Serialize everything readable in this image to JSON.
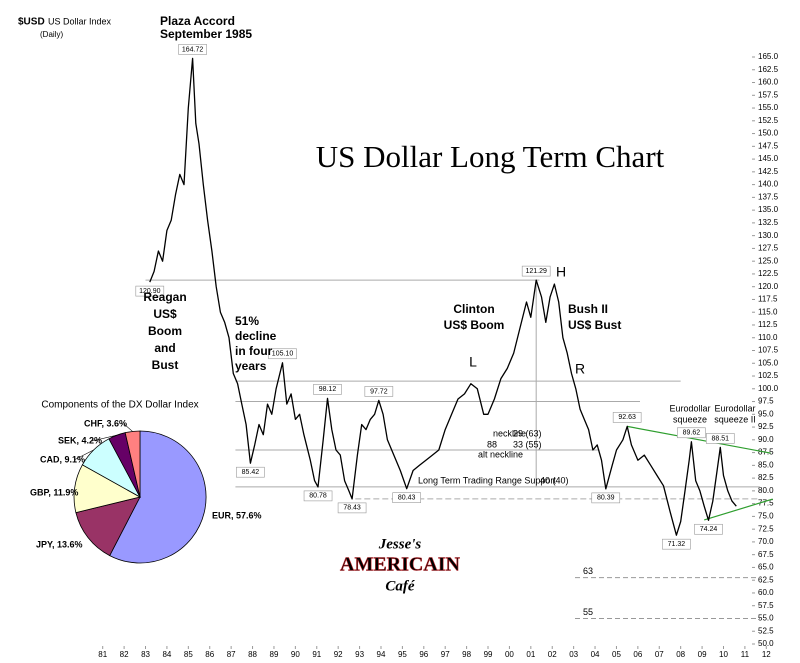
{
  "chart_data": [
    {
      "type": "line",
      "title": "US Dollar Long Term Chart",
      "ticker": "$USD",
      "subtitle": "US Dollar Index",
      "note": "(Daily)",
      "color": "#000000",
      "xlim": [
        1980.5,
        2012.5
      ],
      "ylim": [
        50,
        165
      ],
      "x": [
        1983.2,
        1983.4,
        1983.6,
        1983.8,
        1984.0,
        1984.2,
        1984.4,
        1984.6,
        1984.8,
        1985.0,
        1985.1,
        1985.2,
        1985.35,
        1985.5,
        1985.7,
        1985.9,
        1986.1,
        1986.3,
        1986.5,
        1986.7,
        1986.9,
        1987.1,
        1987.3,
        1987.5,
        1987.7,
        1987.9,
        1988.1,
        1988.3,
        1988.5,
        1988.7,
        1988.9,
        1989.1,
        1989.4,
        1989.6,
        1989.8,
        1990.0,
        1990.2,
        1990.4,
        1990.7,
        1990.9,
        1991.06,
        1991.3,
        1991.5,
        1991.7,
        1991.9,
        1992.1,
        1992.3,
        1992.5,
        1992.65,
        1992.9,
        1993.1,
        1993.3,
        1993.5,
        1993.7,
        1993.9,
        1994.1,
        1994.3,
        1994.5,
        1994.7,
        1994.9,
        1995.2,
        1995.5,
        1995.8,
        1996.1,
        1996.4,
        1996.7,
        1997.0,
        1997.3,
        1997.6,
        1997.9,
        1998.2,
        1998.5,
        1998.8,
        1999.0,
        1999.3,
        1999.6,
        1999.9,
        2000.2,
        2000.5,
        2000.8,
        2001.0,
        2001.25,
        2001.5,
        2001.7,
        2001.9,
        2002.1,
        2002.3,
        2002.5,
        2002.7,
        2002.9,
        2003.1,
        2003.3,
        2003.5,
        2003.7,
        2003.9,
        2004.1,
        2004.3,
        2004.5,
        2004.8,
        2005.0,
        2005.3,
        2005.5,
        2005.7,
        2006.0,
        2006.3,
        2006.6,
        2006.9,
        2007.2,
        2007.5,
        2007.8,
        2008.0,
        2008.2,
        2008.4,
        2008.5,
        2008.7,
        2008.9,
        2009.1,
        2009.3,
        2009.5,
        2009.7,
        2009.85,
        2010.0,
        2010.2,
        2010.4,
        2010.6
      ],
      "values": [
        120.9,
        123,
        127,
        125,
        131,
        133,
        138,
        142,
        140,
        155,
        160,
        164.72,
        152,
        148,
        140,
        133,
        127,
        120,
        115,
        113,
        110,
        103,
        101,
        97,
        93,
        85.42,
        89,
        93,
        91,
        97,
        95,
        100,
        105.1,
        97,
        99,
        94,
        95,
        91,
        86,
        82,
        80.78,
        90,
        98.12,
        92,
        88,
        87,
        82,
        80,
        78.43,
        87,
        93,
        92,
        94,
        95,
        97.72,
        95,
        90,
        88,
        86,
        84,
        80.43,
        84,
        85,
        86,
        87,
        88,
        92,
        95,
        98,
        99,
        101,
        100,
        95,
        95,
        98,
        102,
        104,
        107,
        112,
        117,
        114,
        121.29,
        118,
        113,
        118,
        120.5,
        117,
        110,
        107,
        103,
        100,
        96,
        94,
        92,
        88,
        89,
        86,
        80.39,
        85,
        88,
        90,
        92.63,
        89,
        86,
        87,
        85,
        83,
        81,
        76,
        71.32,
        74,
        80,
        86,
        89.62,
        82,
        80,
        77,
        74.24,
        78,
        84,
        88.51,
        83,
        80,
        78,
        77
      ],
      "value_labels": [
        "120.90",
        null,
        null,
        null,
        null,
        null,
        null,
        null,
        null,
        null,
        null,
        "164.72",
        null,
        null,
        null,
        null,
        null,
        null,
        null,
        null,
        null,
        null,
        null,
        null,
        null,
        "85.42",
        null,
        null,
        null,
        null,
        null,
        null,
        "105.10",
        null,
        null,
        null,
        null,
        null,
        null,
        null,
        "80.78",
        null,
        "98.12",
        null,
        null,
        null,
        null,
        null,
        "78.43",
        null,
        null,
        null,
        null,
        null,
        "97.72",
        null,
        null,
        null,
        null,
        null,
        "80.43",
        null,
        null,
        null,
        null,
        null,
        null,
        null,
        null,
        null,
        null,
        null,
        null,
        null,
        null,
        null,
        null,
        null,
        null,
        null,
        null,
        "121.29",
        null,
        null,
        null,
        null,
        null,
        null,
        null,
        null,
        null,
        null,
        null,
        null,
        null,
        null,
        null,
        "80.39",
        null,
        null,
        null,
        "92.63",
        null,
        null,
        null,
        null,
        null,
        null,
        null,
        "71.32",
        null,
        null,
        null,
        "89.62",
        null,
        null,
        null,
        "74.24",
        null,
        null,
        "88.51",
        null,
        null,
        null,
        null
      ],
      "xticks": [
        {
          "value": 1981,
          "label": "81"
        },
        {
          "value": 1982,
          "label": "82"
        },
        {
          "value": 1983,
          "label": "83"
        },
        {
          "value": 1984,
          "label": "84"
        },
        {
          "value": 1985,
          "label": "85"
        },
        {
          "value": 1986,
          "label": "86"
        },
        {
          "value": 1987,
          "label": "87"
        },
        {
          "value": 1988,
          "label": "88"
        },
        {
          "value": 1989,
          "label": "89"
        },
        {
          "value": 1990,
          "label": "90"
        },
        {
          "value": 1991,
          "label": "91"
        },
        {
          "value": 1992,
          "label": "92"
        },
        {
          "value": 1993,
          "label": "93"
        },
        {
          "value": 1994,
          "label": "94"
        },
        {
          "value": 1995,
          "label": "95"
        },
        {
          "value": 1996,
          "label": "96"
        },
        {
          "value": 1997,
          "label": "97"
        },
        {
          "value": 1998,
          "label": "98"
        },
        {
          "value": 1999,
          "label": "99"
        },
        {
          "value": 2000,
          "label": "00"
        },
        {
          "value": 2001,
          "label": "01"
        },
        {
          "value": 2002,
          "label": "02"
        },
        {
          "value": 2003,
          "label": "03"
        },
        {
          "value": 2004,
          "label": "04"
        },
        {
          "value": 2005,
          "label": "05"
        },
        {
          "value": 2006,
          "label": "06"
        },
        {
          "value": 2007,
          "label": "07"
        },
        {
          "value": 2008,
          "label": "08"
        },
        {
          "value": 2009,
          "label": "09"
        },
        {
          "value": 2010,
          "label": "10"
        },
        {
          "value": 2011,
          "label": "11"
        },
        {
          "value": 2012,
          "label": "12"
        }
      ],
      "yticks": [
        {
          "value": 50,
          "label": "50.0"
        },
        {
          "value": 52.5,
          "label": "52.5"
        },
        {
          "value": 55,
          "label": "55.0"
        },
        {
          "value": 57.5,
          "label": "57.5"
        },
        {
          "value": 60,
          "label": "60.0"
        },
        {
          "value": 62.5,
          "label": "62.5"
        },
        {
          "value": 65,
          "label": "65.0"
        },
        {
          "value": 67.5,
          "label": "67.5"
        },
        {
          "value": 70,
          "label": "70.0"
        },
        {
          "value": 72.5,
          "label": "72.5"
        },
        {
          "value": 75,
          "label": "75.0"
        },
        {
          "value": 77.5,
          "label": "77.5"
        },
        {
          "value": 80,
          "label": "80.0"
        },
        {
          "value": 82.5,
          "label": "82.5"
        },
        {
          "value": 85,
          "label": "85.0"
        },
        {
          "value": 87.5,
          "label": "87.5"
        },
        {
          "value": 90,
          "label": "90.0"
        },
        {
          "value": 92.5,
          "label": "92.5"
        },
        {
          "value": 95,
          "label": "95.0"
        },
        {
          "value": 97.5,
          "label": "97.5"
        },
        {
          "value": 100,
          "label": "100.0"
        },
        {
          "value": 102.5,
          "label": "102.5"
        },
        {
          "value": 105,
          "label": "105.0"
        },
        {
          "value": 107.5,
          "label": "107.5"
        },
        {
          "value": 110,
          "label": "110.0"
        },
        {
          "value": 112.5,
          "label": "112.5"
        },
        {
          "value": 115,
          "label": "115.0"
        },
        {
          "value": 117.5,
          "label": "117.5"
        },
        {
          "value": 120,
          "label": "120.0"
        },
        {
          "value": 122.5,
          "label": "122.5"
        },
        {
          "value": 125,
          "label": "125.0"
        },
        {
          "value": 127.5,
          "label": "127.5"
        },
        {
          "value": 130,
          "label": "130.0"
        },
        {
          "value": 132.5,
          "label": "132.5"
        },
        {
          "value": 135,
          "label": "135.0"
        },
        {
          "value": 137.5,
          "label": "137.5"
        },
        {
          "value": 140,
          "label": "140.0"
        },
        {
          "value": 142.5,
          "label": "142.5"
        },
        {
          "value": 145,
          "label": "145.0"
        },
        {
          "value": 147.5,
          "label": "147.5"
        },
        {
          "value": 150,
          "label": "150.0"
        },
        {
          "value": 152.5,
          "label": "152.5"
        },
        {
          "value": 155,
          "label": "155.0"
        },
        {
          "value": 157.5,
          "label": "157.5"
        },
        {
          "value": 160,
          "label": "160.0"
        },
        {
          "value": 162.5,
          "label": "162.5"
        },
        {
          "value": 165,
          "label": "165.0"
        }
      ],
      "reference_lines": [
        {
          "value": 121.29,
          "x": [
            1983.0,
            2001.4
          ]
        },
        {
          "value": 101.5,
          "x": [
            1987.2,
            2008.0
          ]
        },
        {
          "value": 97.5,
          "x": [
            1987.2,
            2006.1
          ]
        },
        {
          "value": 88,
          "x": [
            1987.2,
            2004.2
          ]
        },
        {
          "value": 80.78,
          "x": [
            1987.2,
            2011.7
          ]
        },
        {
          "value": 78.43,
          "x": [
            1992.8,
            2011.7
          ]
        }
      ],
      "trendlines": [
        {
          "x": [
            2005.5,
            2012.2
          ],
          "values": [
            92.63,
            87.4
          ],
          "color": "#2e9e2e"
        },
        {
          "x": [
            2009.1,
            2012.3
          ],
          "values": [
            74.3,
            78.4
          ],
          "color": "#2e9e2e"
        }
      ],
      "targets": [
        63,
        55
      ],
      "annotations": [
        {
          "lines": [
            "Plaza Accord",
            "September 1985"
          ]
        },
        {
          "lines": [
            "Reagan",
            "US$",
            "Boom",
            "and",
            "Bust"
          ]
        },
        {
          "lines": [
            "51%",
            "decline",
            "in four",
            "years"
          ]
        },
        {
          "lines": [
            "Clinton",
            "US$ Boom"
          ]
        },
        {
          "lines": [
            "Bush II",
            "US$ Bust"
          ]
        },
        {
          "lines": [
            "L"
          ]
        },
        {
          "lines": [
            "H"
          ]
        },
        {
          "lines": [
            "R"
          ]
        },
        {
          "lines": [
            "neckline"
          ]
        },
        {
          "lines": [
            "29 (63)"
          ]
        },
        {
          "lines": [
            "88"
          ]
        },
        {
          "lines": [
            "33 (55)"
          ]
        },
        {
          "lines": [
            "alt neckline"
          ]
        },
        {
          "lines": [
            "Long Term Trading Range Support"
          ]
        },
        {
          "lines": [
            "40 (40)"
          ]
        },
        {
          "lines": [
            "Eurodollar",
            "squeeze"
          ]
        },
        {
          "lines": [
            "Eurodollar",
            "squeeze II"
          ]
        },
        {
          "lines": [
            "Jesse's",
            "AMERICAIN",
            "Café"
          ]
        }
      ]
    },
    {
      "type": "pie",
      "title": "Components of the DX Dollar Index",
      "values": [
        57.6,
        13.6,
        11.9,
        9.1,
        4.2,
        3.6
      ],
      "value_labels": [
        "EUR, 57.6%",
        "JPY, 13.6%",
        "GBP, 11.9%",
        "CAD, 9.1%",
        "SEK, 4.2%",
        "CHF, 3.6%"
      ],
      "colors": [
        "#9999ff",
        "#993366",
        "#ffffcc",
        "#ccffff",
        "#660066",
        "#ff8080"
      ]
    }
  ]
}
